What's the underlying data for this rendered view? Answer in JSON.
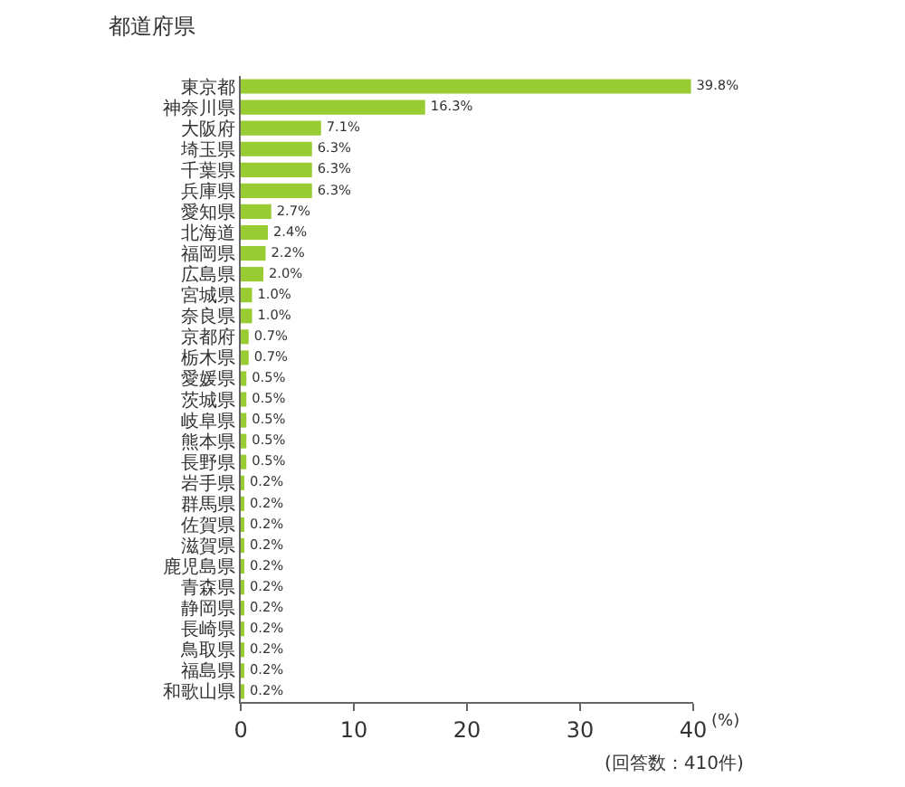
{
  "chart_data": {
    "type": "bar",
    "orientation": "horizontal",
    "title": "都道府県",
    "categories": [
      "東京都",
      "神奈川県",
      "大阪府",
      "埼玉県",
      "千葉県",
      "兵庫県",
      "愛知県",
      "北海道",
      "福岡県",
      "広島県",
      "宮城県",
      "奈良県",
      "京都府",
      "栃木県",
      "愛媛県",
      "茨城県",
      "岐阜県",
      "熊本県",
      "長野県",
      "岩手県",
      "群馬県",
      "佐賀県",
      "滋賀県",
      "鹿児島県",
      "青森県",
      "静岡県",
      "長崎県",
      "鳥取県",
      "福島県",
      "和歌山県"
    ],
    "values": [
      39.8,
      16.3,
      7.1,
      6.3,
      6.3,
      6.3,
      2.7,
      2.4,
      2.2,
      2.0,
      1.0,
      1.0,
      0.7,
      0.7,
      0.5,
      0.5,
      0.5,
      0.5,
      0.5,
      0.2,
      0.2,
      0.2,
      0.2,
      0.2,
      0.2,
      0.2,
      0.2,
      0.2,
      0.2,
      0.2
    ],
    "value_labels": [
      "39.8%",
      "16.3%",
      "7.1%",
      "6.3%",
      "6.3%",
      "6.3%",
      "2.7%",
      "2.4%",
      "2.2%",
      "2.0%",
      "1.0%",
      "1.0%",
      "0.7%",
      "0.7%",
      "0.5%",
      "0.5%",
      "0.5%",
      "0.5%",
      "0.5%",
      "0.2%",
      "0.2%",
      "0.2%",
      "0.2%",
      "0.2%",
      "0.2%",
      "0.2%",
      "0.2%",
      "0.2%",
      "0.2%",
      "0.2%"
    ],
    "color": "#99cc33",
    "xlim": [
      0,
      40
    ],
    "xticks": [
      0,
      10,
      20,
      30,
      40
    ],
    "legend": false,
    "annotations": [
      "(%)",
      "(回答数：410件)"
    ]
  }
}
